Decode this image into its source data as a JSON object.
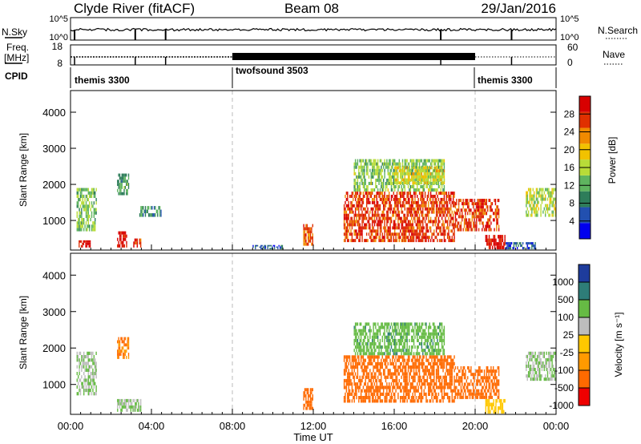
{
  "header": {
    "title": "Clyde River (fitACF)",
    "beam": "Beam 08",
    "date": "29/Jan/2016"
  },
  "top_panels": {
    "nsky_label": "N.Sky",
    "nsky_ticks": [
      "10^5",
      "10^0"
    ],
    "nsearch_label": "N.Search",
    "nsearch_ticks": [
      "10^5",
      "10^0"
    ],
    "freq_label": "Freq.",
    "freq_unit": "[MHz]",
    "freq_ticks": [
      "18",
      "8"
    ],
    "nave_label": "Nave",
    "nave_ticks": [
      "60",
      "0"
    ],
    "cpid_label": "CPID",
    "cpid_segments": [
      {
        "label": "themis 3300",
        "start_h": 0,
        "end_h": 8
      },
      {
        "label": "twofsound 3503",
        "start_h": 8,
        "end_h": 20
      },
      {
        "label": "themis 3300",
        "start_h": 20,
        "end_h": 24
      }
    ]
  },
  "chart_data": [
    {
      "type": "heatmap",
      "name": "power-panel",
      "ylabel": "Slant Range [km]",
      "ylim": [
        180,
        4600
      ],
      "yticks": [
        1000,
        2000,
        3000,
        4000
      ],
      "xlim": [
        0,
        24
      ],
      "colorbar": {
        "label": "Power [dB]",
        "ticks": [
          "28",
          "24",
          "20",
          "16",
          "12",
          "8",
          "4"
        ],
        "range": [
          0,
          32
        ],
        "colors": [
          "#0000ee",
          "#2250b0",
          "#2e7d5a",
          "#5fb45f",
          "#b8dc38",
          "#f2c200",
          "#f08a00",
          "#e03000",
          "#d80000"
        ]
      },
      "regions": [
        {
          "t0": 0.3,
          "t1": 1.3,
          "r0": 700,
          "r1": 1900,
          "value": 13
        },
        {
          "t0": 0.4,
          "t1": 1.0,
          "r0": 250,
          "r1": 450,
          "value": 30
        },
        {
          "t0": 2.3,
          "t1": 2.9,
          "r0": 1700,
          "r1": 2300,
          "value": 11
        },
        {
          "t0": 2.3,
          "t1": 2.8,
          "r0": 250,
          "r1": 700,
          "value": 29
        },
        {
          "t0": 3.1,
          "t1": 3.5,
          "r0": 250,
          "r1": 500,
          "value": 27
        },
        {
          "t0": 3.4,
          "t1": 4.5,
          "r0": 1100,
          "r1": 1400,
          "value": 10
        },
        {
          "t0": 9.0,
          "t1": 10.5,
          "r0": 200,
          "r1": 320,
          "value": 6
        },
        {
          "t0": 11.5,
          "t1": 12.0,
          "r0": 300,
          "r1": 900,
          "value": 25
        },
        {
          "t0": 13.5,
          "t1": 19.0,
          "r0": 400,
          "r1": 1800,
          "value": 27
        },
        {
          "t0": 14.0,
          "t1": 18.5,
          "r0": 1800,
          "r1": 2700,
          "value": 14
        },
        {
          "t0": 16.0,
          "t1": 18.5,
          "r0": 2000,
          "r1": 2500,
          "value": 18
        },
        {
          "t0": 19.0,
          "t1": 21.2,
          "r0": 700,
          "r1": 1600,
          "value": 27
        },
        {
          "t0": 20.5,
          "t1": 21.5,
          "r0": 200,
          "r1": 600,
          "value": 31
        },
        {
          "t0": 21.5,
          "t1": 23.0,
          "r0": 200,
          "r1": 400,
          "value": 6
        },
        {
          "t0": 22.5,
          "t1": 24.0,
          "r0": 1100,
          "r1": 1900,
          "value": 16
        }
      ]
    },
    {
      "type": "heatmap",
      "name": "velocity-panel",
      "ylabel": "Slant Range [km]",
      "ylim": [
        180,
        4600
      ],
      "yticks": [
        1000,
        2000,
        3000,
        4000
      ],
      "xlim": [
        0,
        24
      ],
      "xlabel": "Time UT",
      "xticks": [
        "00:00",
        "04:00",
        "08:00",
        "12:00",
        "16:00",
        "20:00",
        "00:00"
      ],
      "colorbar": {
        "label": "Velocity [m s⁻¹]",
        "ticks": [
          "1000",
          "500",
          "100",
          "25",
          "-25",
          "-100",
          "-500",
          "-1000"
        ],
        "levels": [
          1000,
          500,
          100,
          25,
          -25,
          -100,
          -500,
          -1000
        ],
        "colors": [
          "#1e3c9c",
          "#2e7d78",
          "#66bb44",
          "#bdbdbd",
          "#ffc800",
          "#ff9a00",
          "#ff6a00",
          "#ee0000"
        ]
      },
      "regions": [
        {
          "t0": 0.3,
          "t1": 1.3,
          "r0": 700,
          "r1": 1900,
          "value": 100
        },
        {
          "t0": 2.3,
          "t1": 2.9,
          "r0": 1700,
          "r1": 2300,
          "value": -100
        },
        {
          "t0": 2.3,
          "t1": 3.5,
          "r0": 250,
          "r1": 600,
          "value": 100
        },
        {
          "t0": 11.5,
          "t1": 12.0,
          "r0": 300,
          "r1": 900,
          "value": -300
        },
        {
          "t0": 13.5,
          "t1": 19.0,
          "r0": 500,
          "r1": 1800,
          "value": -350
        },
        {
          "t0": 14.0,
          "t1": 18.5,
          "r0": 1800,
          "r1": 2700,
          "value": 400
        },
        {
          "t0": 19.0,
          "t1": 21.2,
          "r0": 600,
          "r1": 1500,
          "value": -300
        },
        {
          "t0": 20.5,
          "t1": 21.5,
          "r0": 200,
          "r1": 600,
          "value": 0
        },
        {
          "t0": 22.5,
          "t1": 24.0,
          "r0": 1100,
          "r1": 1900,
          "value": 100
        }
      ]
    }
  ]
}
